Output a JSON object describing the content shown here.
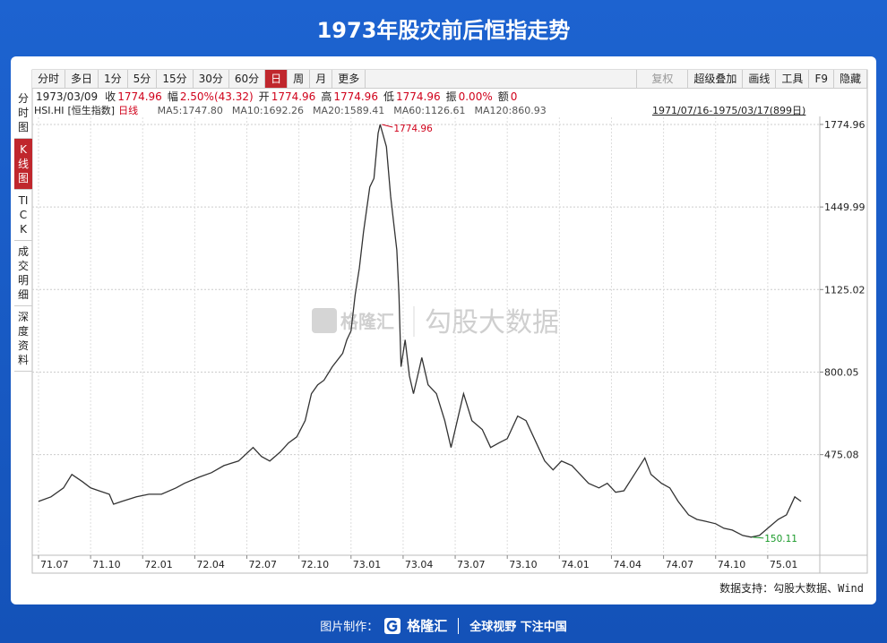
{
  "header": {
    "title": "1973年股灾前后恒指走势"
  },
  "toolbar": {
    "left": [
      "分时",
      "多日",
      "1分",
      "5分",
      "15分",
      "30分",
      "60分",
      "日",
      "周",
      "月",
      "更多"
    ],
    "right": [
      "复权",
      "超级叠加",
      "画线",
      "工具",
      "F9",
      "隐藏"
    ]
  },
  "sidebar": [
    "分时图",
    "K线图",
    "TICK",
    "成交明细",
    "深度资料"
  ],
  "info": [
    [
      "1973/03/09",
      ""
    ],
    [
      "收",
      "1774.96"
    ],
    [
      "幅",
      "2.50%(43.32)"
    ],
    [
      "开",
      "1774.96"
    ],
    [
      "高",
      "1774.96"
    ],
    [
      "低",
      "1774.96"
    ],
    [
      "振",
      "0.00%"
    ],
    [
      "额",
      "0"
    ]
  ],
  "ma_line": {
    "symbol": "HSI.HI",
    "name": "[恒生指数]",
    "period": "日线",
    "items": [
      "MA5:1747.80",
      "MA10:1692.26",
      "MA20:1589.41",
      "MA60:1126.61",
      "MA120:860.93"
    ],
    "range": "1971/07/16-1975/03/17(899日)"
  },
  "watermark": {
    "brand": "格隆汇",
    "product": "勾股大数据"
  },
  "source": "数据支持：勾股大数据、Wind",
  "footer": {
    "label": "图片制作：",
    "brand": "格隆汇",
    "slogan": "全球视野 下注中国"
  },
  "chart_data": {
    "type": "line",
    "color": "#333333",
    "grid": true,
    "annotations": [
      {
        "text": "1774.96",
        "color": "#d0021b"
      },
      {
        "text": "150.11",
        "color": "#1a9a2a"
      }
    ],
    "x": [
      1971.5,
      1971.56,
      1971.62,
      1971.66,
      1971.71,
      1971.75,
      1971.79,
      1971.84,
      1971.86,
      1971.9,
      1971.97,
      1972.03,
      1972.09,
      1972.16,
      1972.2,
      1972.27,
      1972.33,
      1972.39,
      1972.46,
      1972.53,
      1972.57,
      1972.61,
      1972.66,
      1972.7,
      1972.74,
      1972.78,
      1972.81,
      1972.84,
      1972.87,
      1972.91,
      1972.96,
      1972.98,
      1973.0,
      1973.02,
      1973.04,
      1973.06,
      1973.09,
      1973.11,
      1973.13,
      1973.14,
      1973.17,
      1973.19,
      1973.22,
      1973.23,
      1973.24,
      1973.26,
      1973.28,
      1973.3,
      1973.32,
      1973.34,
      1973.37,
      1973.41,
      1973.45,
      1973.48,
      1973.52,
      1973.54,
      1973.58,
      1973.63,
      1973.67,
      1973.71,
      1973.75,
      1973.8,
      1973.84,
      1973.88,
      1973.93,
      1973.97,
      1974.01,
      1974.06,
      1974.1,
      1974.14,
      1974.19,
      1974.23,
      1974.27,
      1974.31,
      1974.36,
      1974.41,
      1974.44,
      1974.49,
      1974.53,
      1974.57,
      1974.62,
      1974.66,
      1974.7,
      1974.75,
      1974.79,
      1974.83,
      1974.88,
      1974.92,
      1974.96,
      1975.0,
      1975.05,
      1975.09,
      1975.13,
      1975.16
    ],
    "values": [
      291,
      309,
      344,
      397,
      369,
      344,
      333,
      319,
      280,
      291,
      309,
      319,
      319,
      344,
      362,
      386,
      404,
      432,
      450,
      503,
      468,
      450,
      485,
      521,
      545,
      609,
      715,
      750,
      768,
      821,
      874,
      927,
      962,
      1104,
      1210,
      1351,
      1528,
      1563,
      1740,
      1774.96,
      1687,
      1492,
      1280,
      1104,
      821,
      927,
      786,
      715,
      786,
      857,
      750,
      715,
      609,
      503,
      644,
      715,
      609,
      574,
      503,
      521,
      538,
      627,
      609,
      538,
      450,
      415,
      450,
      432,
      397,
      362,
      344,
      362,
      327,
      333,
      397,
      462,
      397,
      362,
      344,
      291,
      238,
      220,
      213,
      203,
      185,
      178,
      157,
      150.11,
      157,
      185,
      220,
      238,
      309,
      291
    ],
    "xlim": [
      1971.47,
      1975.25
    ],
    "ylim": [
      79,
      1803
    ],
    "xticks": [
      {
        "value": 1971.5,
        "label": "71.07"
      },
      {
        "value": 1971.75,
        "label": "71.10"
      },
      {
        "value": 1972.0,
        "label": "72.01"
      },
      {
        "value": 1972.25,
        "label": "72.04"
      },
      {
        "value": 1972.5,
        "label": "72.07"
      },
      {
        "value": 1972.75,
        "label": "72.10"
      },
      {
        "value": 1973.0,
        "label": "73.01"
      },
      {
        "value": 1973.25,
        "label": "73.04"
      },
      {
        "value": 1973.5,
        "label": "73.07"
      },
      {
        "value": 1973.75,
        "label": "73.10"
      },
      {
        "value": 1974.0,
        "label": "74.01"
      },
      {
        "value": 1974.25,
        "label": "74.04"
      },
      {
        "value": 1974.5,
        "label": "74.07"
      },
      {
        "value": 1974.75,
        "label": "74.10"
      },
      {
        "value": 1975.0,
        "label": "75.01"
      }
    ],
    "yticks": [
      475.08,
      800.05,
      1125.02,
      1449.99,
      1774.96
    ]
  }
}
